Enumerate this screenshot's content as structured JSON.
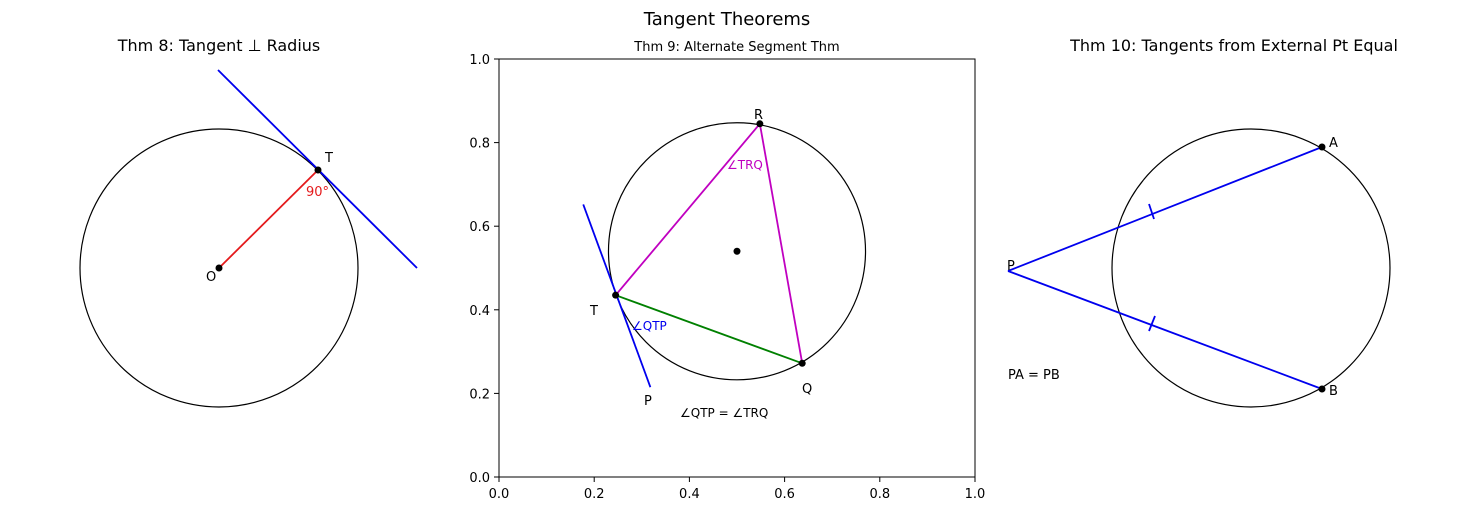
{
  "figure": {
    "title": "Tangent Theorems"
  },
  "panels": {
    "thm8": {
      "title": "Thm 8: Tangent ⊥ Radius",
      "center_label": "O",
      "point_label": "T",
      "angle_label": "90°",
      "colors": {
        "circle": "#000000",
        "radius": "#e41a1c",
        "tangent": "#0000ee",
        "angle": "#e41a1c"
      }
    },
    "thm9": {
      "title": "Thm 9: Alternate Segment Thm",
      "labels": {
        "T": "T",
        "R": "R",
        "Q": "Q",
        "P": "P"
      },
      "angle_qtp": "∠QTP",
      "angle_trq": "∠TRQ",
      "equation": "∠QTP = ∠TRQ",
      "x_ticks": [
        "0.0",
        "0.2",
        "0.4",
        "0.6",
        "0.8",
        "1.0"
      ],
      "y_ticks": [
        "0.0",
        "0.2",
        "0.4",
        "0.6",
        "0.8",
        "1.0"
      ],
      "colors": {
        "tangent": "#0000ee",
        "TR": "#c000c0",
        "RQ": "#c000c0",
        "TQ": "#008000",
        "qtp_label": "#0000ee",
        "trq_label": "#c000c0"
      },
      "points": {
        "center": [
          0.5,
          0.54
        ],
        "T": [
          0.245,
          0.435
        ],
        "R": [
          0.548,
          0.845
        ],
        "Q": [
          0.637,
          0.272
        ],
        "tangent_start": [
          0.177,
          0.652
        ],
        "tangent_end": [
          0.318,
          0.215
        ]
      },
      "radius": 0.27
    },
    "thm10": {
      "title": "Thm 10: Tangents from External Pt Equal",
      "labels": {
        "P": "P",
        "A": "A",
        "B": "B"
      },
      "equation": "PA = PB",
      "colors": {
        "tangents": "#0000ee",
        "circle": "#000000"
      }
    }
  }
}
